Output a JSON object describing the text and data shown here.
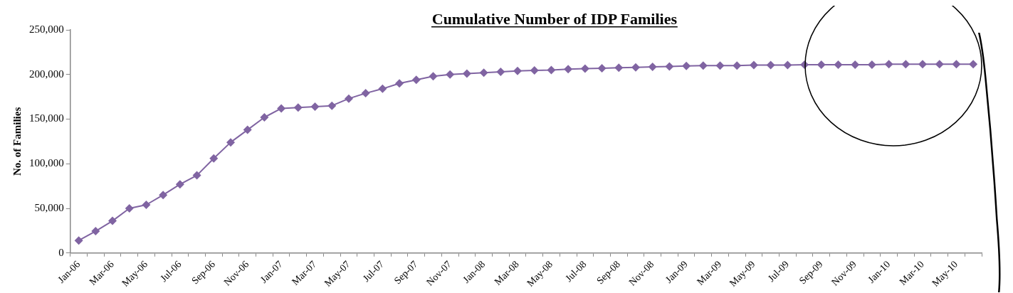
{
  "chart_data": {
    "type": "line",
    "title": "Cumulative Number of IDP Families",
    "ylabel": "No. of Families",
    "categories": [
      "Jan-06",
      null,
      "Mar-06",
      null,
      "May-06",
      null,
      "Jul-06",
      null,
      "Sep-06",
      null,
      "Nov-06",
      null,
      "Jan-07",
      null,
      "Mar-07",
      null,
      "May-07",
      null,
      "Jul-07",
      null,
      "Sep-07",
      null,
      "Nov-07",
      null,
      "Jan-08",
      null,
      "Mar-08",
      null,
      "May-08",
      null,
      "Jul-08",
      null,
      "Sep-08",
      null,
      "Nov-08",
      null,
      "Jan-09",
      null,
      "Mar-09",
      null,
      "May-09",
      null,
      "Jul-09",
      null,
      "Sep-09",
      null,
      "Nov-09",
      null,
      "Jan-10",
      null,
      "Mar-10",
      null,
      "May-10",
      null
    ],
    "series": [
      {
        "color": "#8064a2",
        "values": [
          14000,
          24500,
          36000,
          50000,
          54000,
          65000,
          77000,
          87000,
          106000,
          124000,
          138000,
          152000,
          162000,
          163000,
          164000,
          165000,
          173000,
          179000,
          184000,
          190000,
          194000,
          198000,
          200000,
          201000,
          202000,
          203000,
          204000,
          204500,
          205000,
          206000,
          206500,
          207000,
          207500,
          208000,
          208500,
          209000,
          209500,
          210000,
          210000,
          210000,
          210500,
          210500,
          210500,
          211000,
          211000,
          211000,
          211000,
          211000,
          211500,
          211500,
          211500,
          211500,
          211500,
          211500
        ]
      }
    ],
    "ylim": [
      0,
      250000
    ],
    "yticks": [
      0,
      {
        "value": 50000,
        "label": "50,000"
      },
      {
        "value": 100000,
        "label": "100,000"
      },
      {
        "value": 150000,
        "label": "150,000"
      },
      {
        "value": 200000,
        "label": "200,000"
      },
      {
        "value": 250000,
        "label": "250,000"
      }
    ],
    "marker": "diamond",
    "line_style": "solid",
    "legend": false
  }
}
